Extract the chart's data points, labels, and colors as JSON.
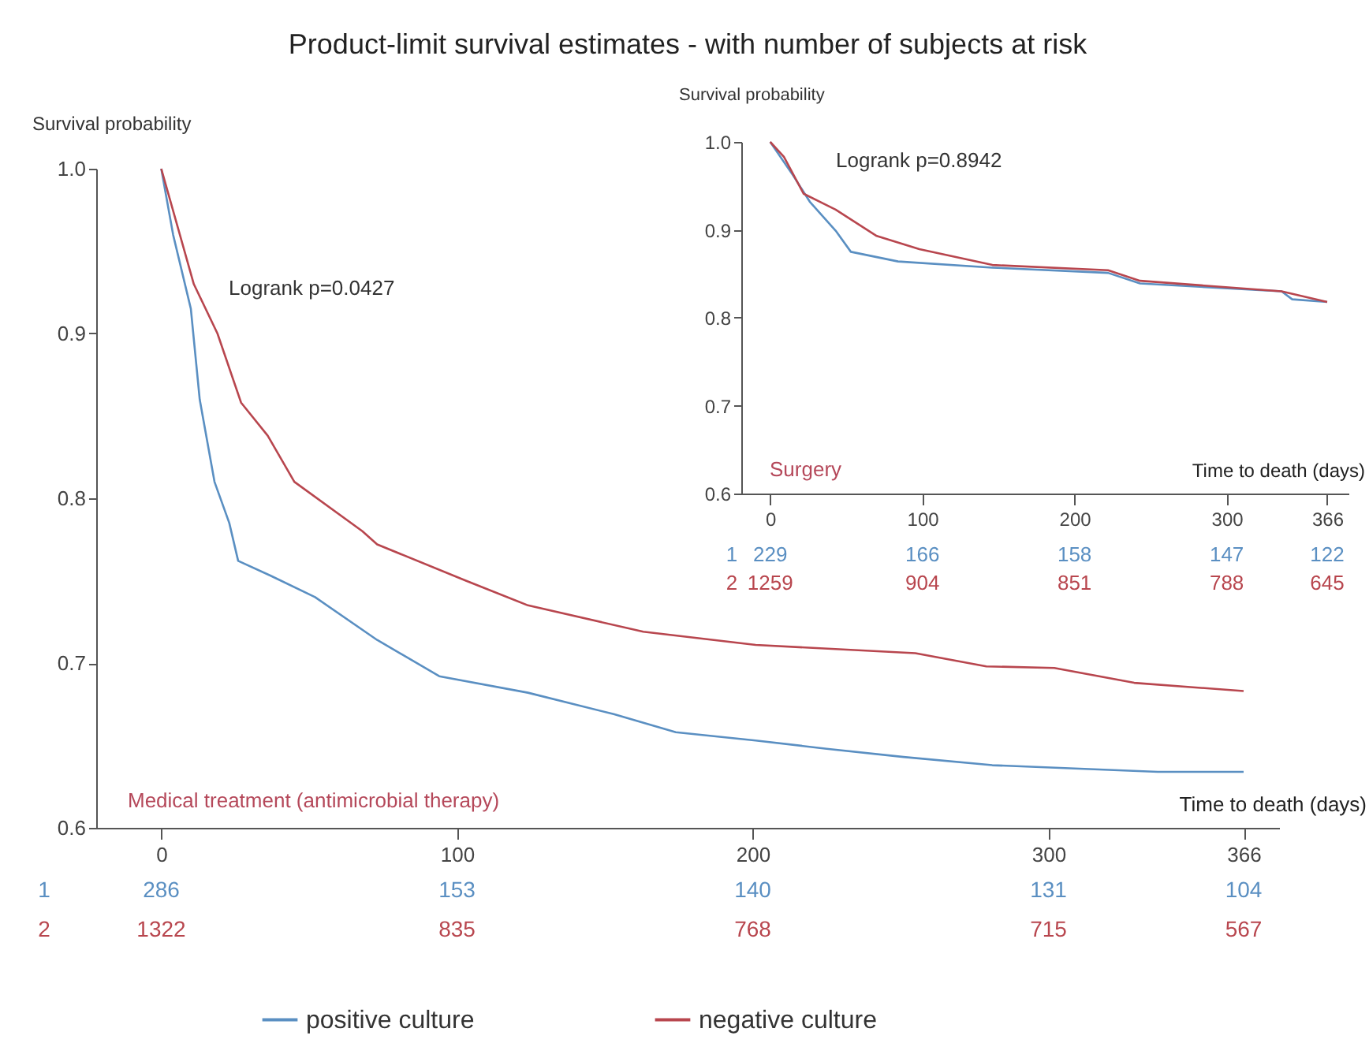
{
  "chart_data": [
    {
      "type": "line",
      "title": "Product-limit survival estimates - with number of subjects at risk",
      "xlabel": "Time to death (days)",
      "ylabel": "Survival probability",
      "xlim": [
        -22,
        378
      ],
      "xticks": [
        0,
        100,
        200,
        300,
        366
      ],
      "ylim": [
        0.6,
        1.0
      ],
      "yticks": [
        0.6,
        0.7,
        0.8,
        0.9,
        {
          "value": 1.0,
          "label": "1.0"
        }
      ],
      "grid": false,
      "legend": "bottom",
      "series": [
        {
          "name": "positive culture",
          "color": "#5a8fc2",
          "x": [
            0,
            4,
            10,
            13,
            18,
            23,
            26,
            37,
            52,
            73,
            94,
            124,
            153,
            174,
            201,
            225,
            251,
            281,
            337,
            366
          ],
          "values": [
            1.0,
            0.96,
            0.915,
            0.86,
            0.81,
            0.785,
            0.762,
            0.753,
            0.74,
            0.714,
            0.692,
            0.682,
            0.669,
            0.658,
            0.653,
            0.648,
            0.643,
            0.638,
            0.634,
            0.634
          ]
        },
        {
          "name": "negative culture",
          "color": "#b8464e",
          "x": [
            0,
            11,
            19,
            27,
            36,
            45,
            68,
            73,
            103,
            124,
            163,
            201,
            255,
            279,
            302,
            329,
            366
          ],
          "values": [
            1.0,
            0.93,
            0.9,
            0.858,
            0.838,
            0.81,
            0.78,
            0.772,
            0.75,
            0.735,
            0.719,
            0.711,
            0.706,
            0.698,
            0.697,
            0.688,
            0.683
          ]
        }
      ],
      "annotations": [
        "Logrank p=0.0427",
        "Medical treatment (antimicrobial therapy)",
        "1 286 153 140 131 104",
        "2 1322 835 768 715 567"
      ]
    },
    {
      "type": "line",
      "xlabel": "Time to death (days)",
      "ylabel": "Survival probability",
      "xlim": [
        -19,
        380
      ],
      "xticks": [
        0,
        100,
        200,
        300,
        366
      ],
      "ylim": [
        0.6,
        1.0
      ],
      "yticks": [
        0.6,
        0.7,
        0.8,
        0.9,
        {
          "value": 1.0,
          "label": "1.0"
        }
      ],
      "grid": false,
      "series": [
        {
          "color": "#5a8fc2",
          "x": [
            0,
            15,
            26,
            43,
            53,
            84,
            146,
            222,
            243,
            336,
            343,
            366
          ],
          "values": [
            1.0,
            0.962,
            0.932,
            0.899,
            0.875,
            0.864,
            0.857,
            0.851,
            0.839,
            0.83,
            0.821,
            0.818
          ]
        },
        {
          "color": "#b8464e",
          "x": [
            0,
            9,
            22,
            43,
            70,
            98,
            146,
            222,
            243,
            336,
            366
          ],
          "values": [
            1.0,
            0.983,
            0.941,
            0.923,
            0.893,
            0.878,
            0.86,
            0.854,
            0.842,
            0.83,
            0.818
          ]
        }
      ],
      "annotations": [
        "Logrank p=0.8942",
        "Surgery",
        "1 229 166 158 147 122",
        "2 1259 904 851 788 645"
      ]
    }
  ]
}
